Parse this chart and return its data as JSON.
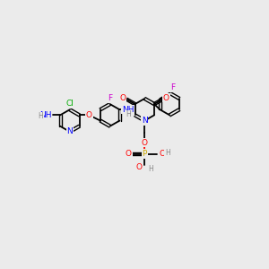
{
  "bg": "#ebebeb",
  "colors": {
    "N": "#0000ff",
    "O": "#ff0000",
    "F": "#cc00cc",
    "Cl": "#00aa00",
    "P": "#ccaa00",
    "H": "#888888",
    "C": "#000000"
  },
  "ring_r": 16,
  "lw_single": 1.3,
  "lw_double": 1.0,
  "dbl_off": 2.0,
  "fs": 6.5,
  "fig_w": 3.0,
  "fig_h": 3.0,
  "dpi": 100
}
